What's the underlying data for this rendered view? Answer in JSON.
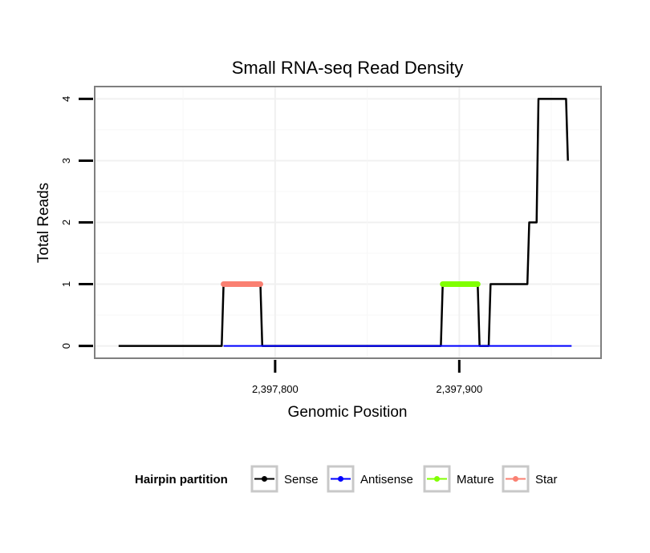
{
  "chart_data": {
    "type": "line",
    "title": "Small RNA-seq Read Density",
    "xlabel": "Genomic Position",
    "ylabel": "Total Reads",
    "xlim": [
      2397702,
      2397977
    ],
    "ylim": [
      -0.2,
      4.2
    ],
    "x_ticks": [
      2397800,
      2397900
    ],
    "x_tick_labels": [
      "2,397,800",
      "2,397,900"
    ],
    "y_ticks": [
      0,
      1,
      2,
      3,
      4
    ],
    "y_tick_labels": [
      "0",
      "1",
      "2",
      "3",
      "4"
    ],
    "grid": true,
    "legend": {
      "title": "Hairpin partition",
      "position": "bottom",
      "entries": [
        {
          "name": "Sense",
          "color": "#000000"
        },
        {
          "name": "Antisense",
          "color": "#0000ff"
        },
        {
          "name": "Mature",
          "color": "#80ff00"
        },
        {
          "name": "Star",
          "color": "#fa8072"
        }
      ]
    },
    "series": [
      {
        "name": "Sense",
        "color": "#000000",
        "x": [
          2397715,
          2397771,
          2397772,
          2397792,
          2397793,
          2397890,
          2397891,
          2397910,
          2397911,
          2397916,
          2397917,
          2397937,
          2397938,
          2397942,
          2397943,
          2397958,
          2397959
        ],
        "y": [
          0,
          0,
          1,
          1,
          0,
          0,
          1,
          1,
          0,
          0,
          1,
          1,
          2,
          2,
          4,
          4,
          3
        ]
      },
      {
        "name": "Antisense",
        "color": "#0000ff",
        "x": [
          2397772,
          2397961
        ],
        "y": [
          0,
          0
        ]
      },
      {
        "name": "Mature",
        "color": "#80ff00",
        "x": [
          2397891,
          2397910
        ],
        "y": [
          1,
          1
        ]
      },
      {
        "name": "Star",
        "color": "#fa8072",
        "x": [
          2397772,
          2397792
        ],
        "y": [
          1,
          1
        ]
      }
    ]
  }
}
